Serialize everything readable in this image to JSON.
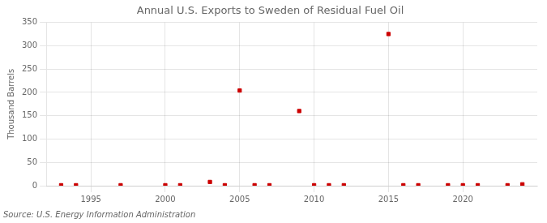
{
  "chart_data": {
    "type": "scatter",
    "title": "Annual U.S. Exports to Sweden of Residual Fuel Oil",
    "ylabel": "Thousand Barrels",
    "source": "Source: U.S. Energy Information Administration",
    "x": [
      1993,
      1994,
      1997,
      2000,
      2001,
      2003,
      2004,
      2005,
      2006,
      2007,
      2009,
      2010,
      2011,
      2012,
      2015,
      2016,
      2017,
      2019,
      2020,
      2021,
      2023,
      2024
    ],
    "values": [
      1,
      1,
      1,
      1,
      1,
      8,
      1,
      204,
      1,
      1,
      160,
      1,
      1,
      1,
      325,
      1,
      1,
      1,
      1,
      1,
      1,
      3
    ],
    "color": "#cc0000",
    "marker": "square",
    "xlim": [
      1992,
      2025
    ],
    "xticks": [
      1995,
      2000,
      2005,
      2010,
      2015,
      2020
    ],
    "ylim": [
      0,
      350
    ],
    "yticks": [
      0,
      50,
      100,
      150,
      200,
      250,
      300,
      350
    ],
    "grid": true
  }
}
